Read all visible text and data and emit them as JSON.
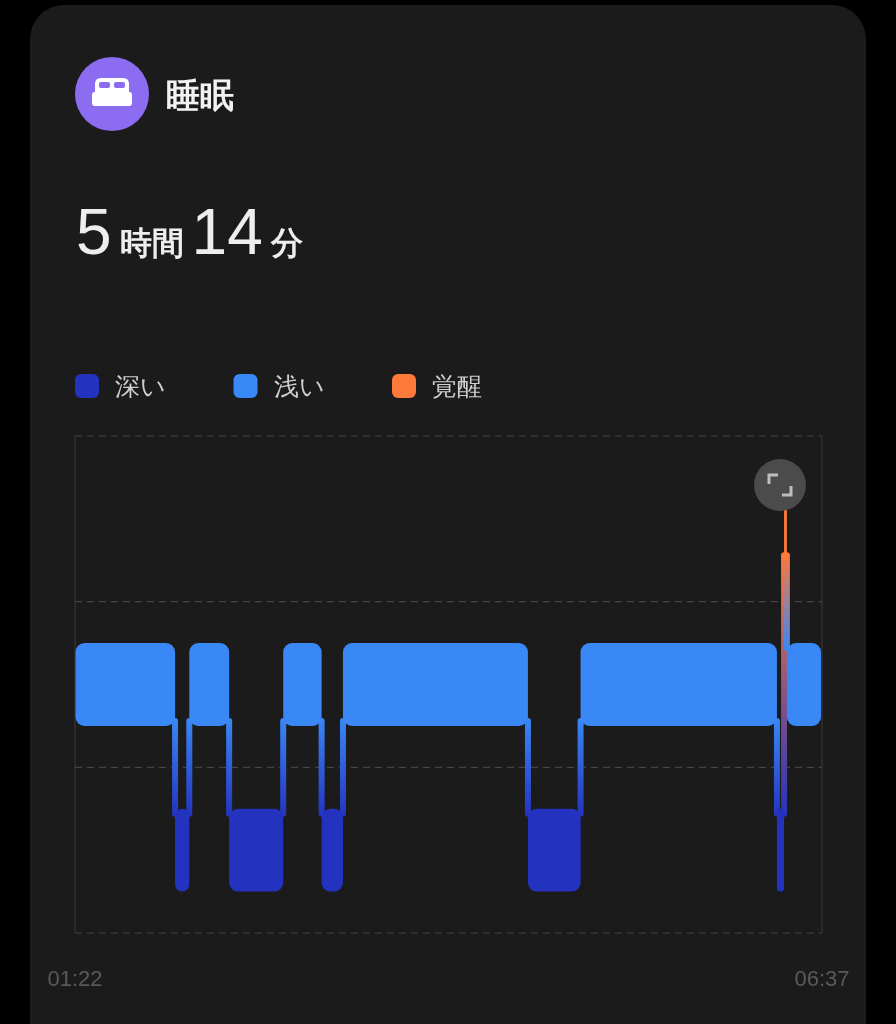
{
  "chart_data": {
    "type": "bar",
    "title": "睡眠",
    "subtitle": "5時間14分",
    "orientation": "horizontal",
    "categories": [
      null,
      null,
      null
    ],
    "xlim": [
      1.3667,
      6.6167
    ],
    "xticks": [
      {
        "value": 1.3667,
        "label": "01:22"
      },
      {
        "value": 6.6167,
        "label": "06:37"
      }
    ],
    "grid": "y",
    "legend": "top left",
    "series": [
      {
        "name": "深い",
        "color": "#2433bf",
        "values": [
          null,
          null,
          0.1
        ],
        "base": [
          null,
          null,
          2.07
        ]
      },
      {
        "color": "#2433bf",
        "values": [
          null,
          null,
          0.38
        ],
        "base": [
          null,
          null,
          2.45
        ]
      },
      {
        "color": "#2433bf",
        "values": [
          null,
          null,
          0.15
        ],
        "base": [
          null,
          null,
          3.1
        ]
      },
      {
        "color": "#2433bf",
        "values": [
          null,
          null,
          0.37
        ],
        "base": [
          null,
          null,
          4.55
        ]
      },
      {
        "color": "#2433bf",
        "values": [
          null,
          null,
          0.05
        ],
        "base": [
          null,
          null,
          6.3
        ]
      },
      {
        "name": "浅い",
        "color": "#3a88f5",
        "values": [
          null,
          0.7,
          null
        ],
        "base": [
          null,
          1.37,
          null
        ]
      },
      {
        "color": "#3a88f5",
        "values": [
          null,
          0.28,
          null
        ],
        "base": [
          null,
          2.17,
          null
        ]
      },
      {
        "color": "#3a88f5",
        "values": [
          null,
          0.27,
          null
        ],
        "base": [
          null,
          2.83,
          null
        ]
      },
      {
        "color": "#3a88f5",
        "values": [
          null,
          1.3,
          null
        ],
        "base": [
          null,
          3.25,
          null
        ]
      },
      {
        "color": "#3a88f5",
        "values": [
          null,
          1.38,
          null
        ],
        "base": [
          null,
          4.92,
          null
        ]
      },
      {
        "color": "#3a88f5",
        "values": [
          null,
          0.24,
          null
        ],
        "base": [
          null,
          6.37,
          null
        ]
      },
      {
        "name": "覚醒",
        "color": "#ff7a3a",
        "values": [
          0.02,
          null,
          null
        ],
        "base": [
          6.35,
          null,
          null
        ]
      }
    ]
  }
}
